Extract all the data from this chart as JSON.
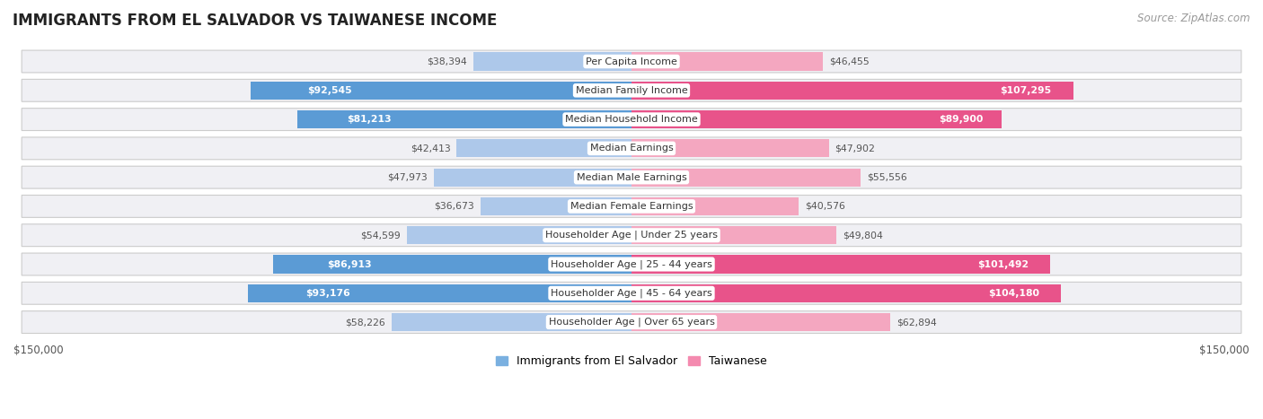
{
  "title": "IMMIGRANTS FROM EL SALVADOR VS TAIWANESE INCOME",
  "source": "Source: ZipAtlas.com",
  "categories": [
    "Per Capita Income",
    "Median Family Income",
    "Median Household Income",
    "Median Earnings",
    "Median Male Earnings",
    "Median Female Earnings",
    "Householder Age | Under 25 years",
    "Householder Age | 25 - 44 years",
    "Householder Age | 45 - 64 years",
    "Householder Age | Over 65 years"
  ],
  "left_values": [
    38394,
    92545,
    81213,
    42413,
    47973,
    36673,
    54599,
    86913,
    93176,
    58226
  ],
  "right_values": [
    46455,
    107295,
    89900,
    47902,
    55556,
    40576,
    49804,
    101492,
    104180,
    62894
  ],
  "left_labels": [
    "$38,394",
    "$92,545",
    "$81,213",
    "$42,413",
    "$47,973",
    "$36,673",
    "$54,599",
    "$86,913",
    "$93,176",
    "$58,226"
  ],
  "right_labels": [
    "$46,455",
    "$107,295",
    "$89,900",
    "$47,902",
    "$55,556",
    "$40,576",
    "$49,804",
    "$101,492",
    "$104,180",
    "$62,894"
  ],
  "left_color_light": "#adc8ea",
  "left_color_dark": "#5b9bd5",
  "right_color_light": "#f4a7c0",
  "right_color_dark": "#e8538a",
  "inside_threshold": 70000,
  "max_value": 150000,
  "axis_label_left": "$150,000",
  "axis_label_right": "$150,000",
  "left_legend": "Immigrants from El Salvador",
  "right_legend": "Taiwanese"
}
